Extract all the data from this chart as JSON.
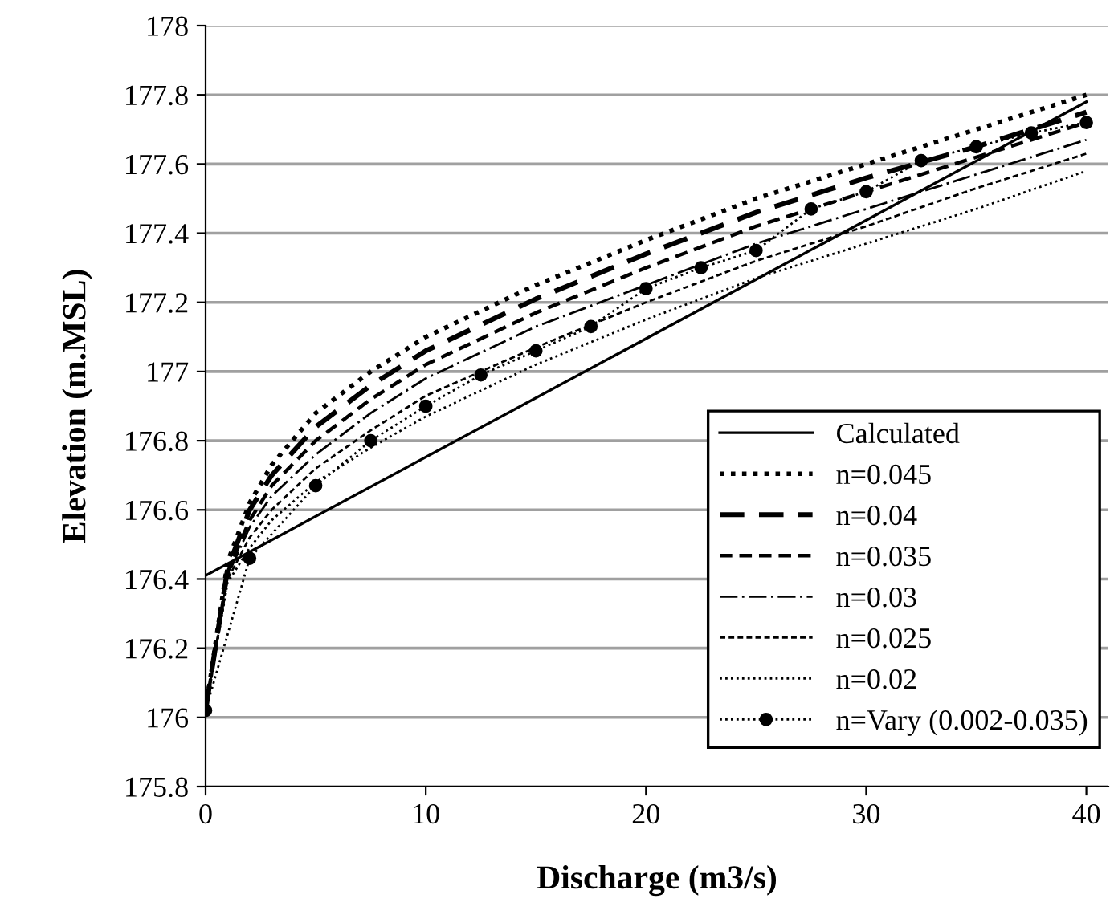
{
  "chart_data": {
    "type": "line",
    "xlabel": "Discharge (m3/s)",
    "ylabel": "Elevation (m.MSL)",
    "xlim": [
      0,
      41
    ],
    "xticks": [
      0,
      10,
      20,
      30,
      40
    ],
    "ylim": [
      175.8,
      178
    ],
    "yticks": [
      175.8,
      176,
      176.2,
      176.4,
      176.6,
      176.8,
      177,
      177.2,
      177.4,
      177.6,
      177.8,
      178
    ],
    "grid": "y",
    "legend": "bottom right",
    "series": [
      {
        "name": "Calculated",
        "color": "#000000",
        "line_style": "solid",
        "marker": "none",
        "x": [
          0,
          40
        ],
        "values": [
          176.41,
          177.78
        ]
      },
      {
        "name": "n=0.045",
        "color": "#000000",
        "line_style": "dotted",
        "marker": "none",
        "x": [
          0,
          1,
          2,
          3,
          5,
          7.5,
          10,
          15,
          20,
          25,
          30,
          35,
          40
        ],
        "values": [
          176.02,
          176.45,
          176.62,
          176.73,
          176.88,
          177.0,
          177.1,
          177.25,
          177.38,
          177.5,
          177.6,
          177.7,
          177.8
        ]
      },
      {
        "name": "n=0.04",
        "color": "#000000",
        "line_style": "dashed",
        "marker": "none",
        "x": [
          0,
          1,
          2,
          3,
          5,
          7.5,
          10,
          15,
          20,
          25,
          30,
          35,
          40
        ],
        "values": [
          176.02,
          176.43,
          176.6,
          176.7,
          176.84,
          176.96,
          177.06,
          177.21,
          177.34,
          177.46,
          177.56,
          177.65,
          177.75
        ]
      },
      {
        "name": "n=0.035",
        "color": "#000000",
        "line_style": "dashed",
        "marker": "none",
        "x": [
          0,
          1,
          2,
          3,
          5,
          7.5,
          10,
          15,
          20,
          25,
          30,
          35,
          40
        ],
        "values": [
          176.02,
          176.42,
          176.57,
          176.67,
          176.8,
          176.92,
          177.02,
          177.17,
          177.3,
          177.42,
          177.52,
          177.62,
          177.72
        ]
      },
      {
        "name": "n=0.03",
        "color": "#000000",
        "line_style": "dashdot",
        "marker": "none",
        "x": [
          0,
          1,
          2,
          3,
          5,
          7.5,
          10,
          15,
          20,
          25,
          30,
          35,
          40
        ],
        "values": [
          176.02,
          176.41,
          176.55,
          176.64,
          176.76,
          176.88,
          176.98,
          177.13,
          177.25,
          177.37,
          177.47,
          177.57,
          177.67
        ]
      },
      {
        "name": "n=0.025",
        "color": "#000000",
        "line_style": "dashed",
        "marker": "none",
        "x": [
          0,
          1,
          2,
          3,
          5,
          7.5,
          10,
          15,
          20,
          25,
          30,
          35,
          40
        ],
        "values": [
          176.02,
          176.4,
          176.52,
          176.6,
          176.72,
          176.83,
          176.93,
          177.07,
          177.2,
          177.32,
          177.42,
          177.53,
          177.63
        ]
      },
      {
        "name": "n=0.02",
        "color": "#000000",
        "line_style": "dotted",
        "marker": "none",
        "x": [
          0,
          1,
          2,
          3,
          5,
          7.5,
          10,
          15,
          20,
          25,
          30,
          35,
          40
        ],
        "values": [
          176.02,
          176.39,
          176.49,
          176.57,
          176.68,
          176.78,
          176.87,
          177.02,
          177.15,
          177.27,
          177.37,
          177.47,
          177.58
        ]
      },
      {
        "name": "n=Vary (0.002-0.035)",
        "color": "#000000",
        "line_style": "dotted",
        "marker": "circle",
        "x": [
          0,
          2,
          5,
          7.5,
          10,
          12.5,
          15,
          17.5,
          20,
          22.5,
          25,
          27.5,
          30,
          32.5,
          35,
          37.5,
          40
        ],
        "values": [
          176.02,
          176.46,
          176.67,
          176.8,
          176.9,
          176.99,
          177.06,
          177.13,
          177.24,
          177.3,
          177.35,
          177.47,
          177.52,
          177.61,
          177.65,
          177.69,
          177.72
        ]
      }
    ]
  }
}
